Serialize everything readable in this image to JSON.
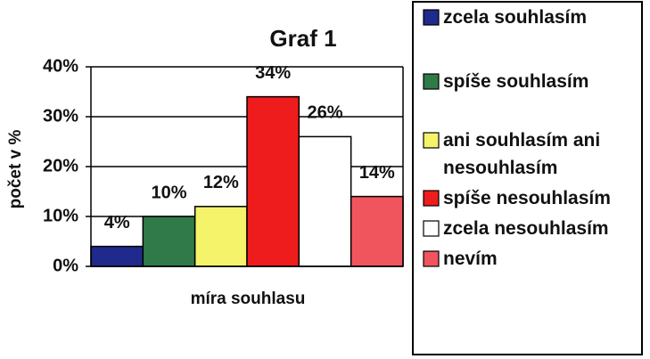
{
  "chart_data": {
    "type": "bar",
    "title": "Graf 1",
    "x_label": "míra souhlasu",
    "y_label": "počet v %",
    "categories": [
      null
    ],
    "series": [
      {
        "name": "zcela souhlasím",
        "color": "#1f2a8c",
        "values": [
          4
        ],
        "value_labels": [
          "4%"
        ]
      },
      {
        "name": "spíše souhlasím",
        "color": "#2f7a48",
        "values": [
          10
        ],
        "value_labels": [
          "10%"
        ]
      },
      {
        "name": "ani souhlasím ani nesouhlasím",
        "color": "#f4f36a",
        "values": [
          12
        ],
        "value_labels": [
          "12%"
        ]
      },
      {
        "name": "spíše nesouhlasím",
        "color": "#ee1c1c",
        "values": [
          34
        ],
        "value_labels": [
          "34%"
        ]
      },
      {
        "name": "zcela nesouhlasím",
        "color": "#ffffff",
        "values": [
          26
        ],
        "value_labels": [
          "26%"
        ]
      },
      {
        "name": "nevím",
        "color": "#f0555e",
        "values": [
          14
        ],
        "value_labels": [
          "14%"
        ]
      }
    ],
    "ylim": [
      0,
      40
    ],
    "yticks": [
      {
        "value": 0,
        "label": "0%"
      },
      {
        "value": 10,
        "label": "10%"
      },
      {
        "value": 20,
        "label": "20%"
      },
      {
        "value": 30,
        "label": "30%"
      },
      {
        "value": 40,
        "label": "40%"
      }
    ],
    "grid": true,
    "legend": "right"
  }
}
